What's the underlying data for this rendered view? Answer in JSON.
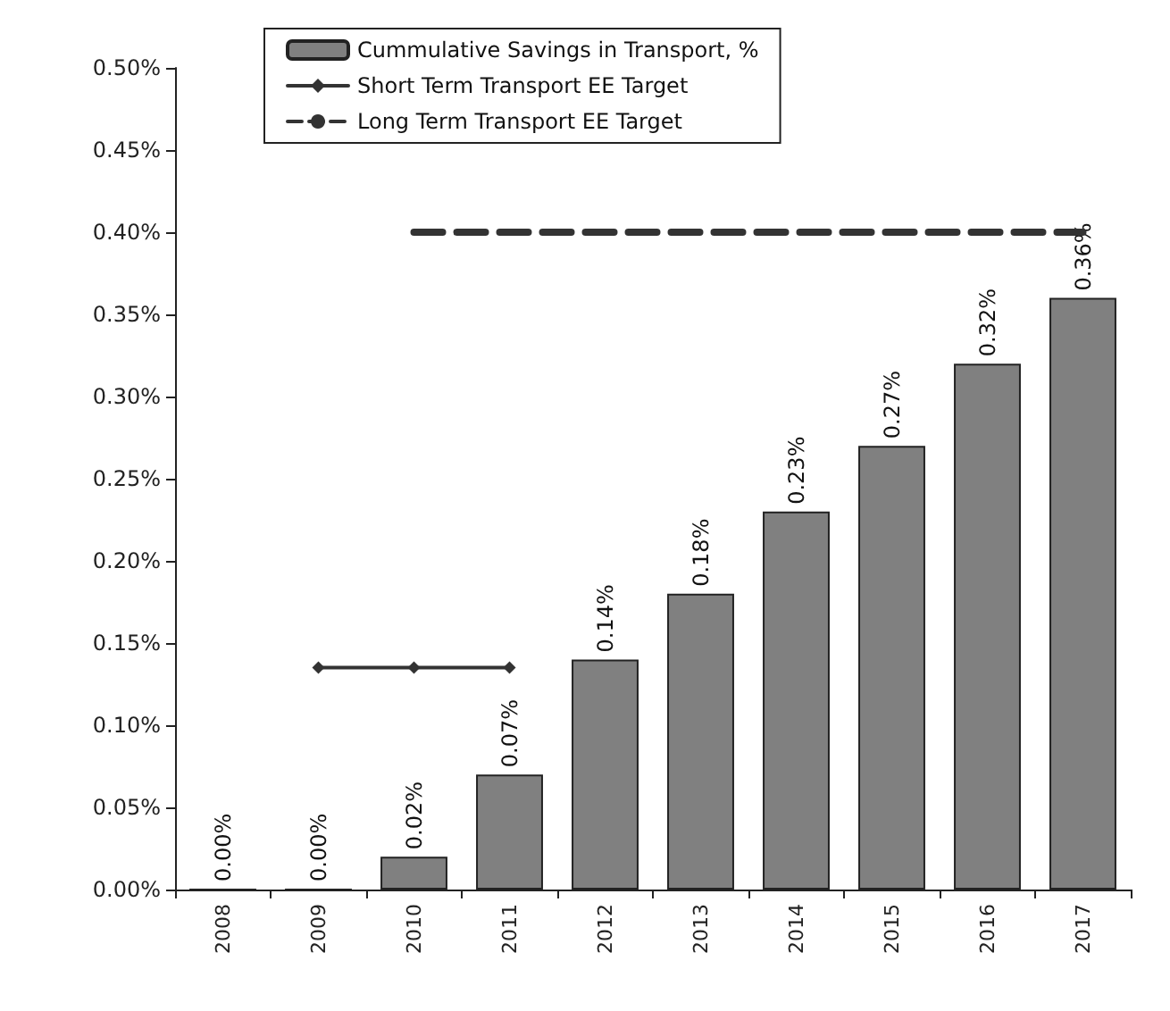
{
  "chart_data": {
    "type": "bar",
    "categories": [
      "2008",
      "2009",
      "2010",
      "2011",
      "2012",
      "2013",
      "2014",
      "2015",
      "2016",
      "2017"
    ],
    "series": [
      {
        "name": "Cummulative Savings in Transport, %",
        "color": "#808080",
        "values": [
          0.0,
          0.0,
          0.02,
          0.07,
          0.14,
          0.18,
          0.23,
          0.27,
          0.32,
          0.36
        ],
        "value_labels": [
          "0.00%",
          "0.00%",
          "0.02%",
          "0.07%",
          "0.14%",
          "0.18%",
          "0.23%",
          "0.27%",
          "0.32%",
          "0.36%"
        ]
      },
      {
        "name": "Short Term Transport EE Target",
        "type": "line",
        "color": "#333333",
        "values": [
          null,
          0.135,
          0.135,
          0.135,
          null,
          null,
          null,
          null,
          null,
          null
        ],
        "marker": "diamond",
        "line_style": "solid"
      },
      {
        "name": "Long Term Transport EE Target",
        "type": "line",
        "color": "#333333",
        "values": [
          null,
          null,
          0.4,
          0.4,
          0.4,
          0.4,
          0.4,
          0.4,
          0.4,
          0.4
        ],
        "marker": "none",
        "line_style": "dashed"
      }
    ],
    "ylim": [
      0,
      0.5
    ],
    "yticks": [
      {
        "value": 0,
        "label": "0.00%"
      },
      {
        "value": 0.05,
        "label": "0.05%"
      },
      {
        "value": 0.1,
        "label": "0.10%"
      },
      {
        "value": 0.15,
        "label": "0.15%"
      },
      {
        "value": 0.2,
        "label": "0.20%"
      },
      {
        "value": 0.25,
        "label": "0.25%"
      },
      {
        "value": 0.3,
        "label": "0.30%"
      },
      {
        "value": 0.35,
        "label": "0.35%"
      },
      {
        "value": 0.4,
        "label": "0.40%"
      },
      {
        "value": 0.45,
        "label": "0.45%"
      },
      {
        "value": 0.5,
        "label": "0.50%"
      }
    ],
    "grid": false,
    "legend": "top left"
  }
}
